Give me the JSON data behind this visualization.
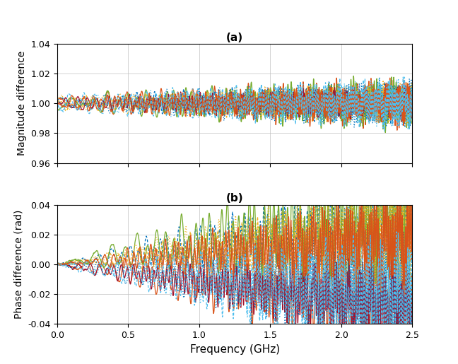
{
  "title_a": "(a)",
  "title_b": "(b)",
  "xlabel": "Frequency (GHz)",
  "ylabel_a": "Magnitude difference",
  "ylabel_b": "Phase difference (rad)",
  "xlim": [
    0,
    2.5
  ],
  "ylim_a": [
    0.96,
    1.04
  ],
  "ylim_b": [
    -0.04,
    0.04
  ],
  "xticks": [
    0,
    0.5,
    1.0,
    1.5,
    2.0,
    2.5
  ],
  "yticks_a": [
    0.96,
    0.98,
    1.0,
    1.02,
    1.04
  ],
  "yticks_b": [
    -0.04,
    -0.02,
    0.0,
    0.02,
    0.04
  ],
  "n_points": 2000,
  "n_lines": 10,
  "matlab_colors": [
    "#0072BD",
    "#D95319",
    "#EDB120",
    "#4DBEEE",
    "#77AC30",
    "#A2142F",
    "#EDB120",
    "#0072BD",
    "#D95319",
    "#4DBEEE"
  ],
  "line_styles": [
    "--",
    "-",
    "--",
    "--",
    "-",
    "-",
    ":",
    ":",
    "-",
    "--"
  ],
  "line_widths": [
    1.0,
    1.0,
    1.0,
    1.0,
    1.0,
    1.0,
    1.0,
    1.0,
    1.0,
    1.0
  ],
  "background_color": "#ffffff",
  "grid_color": "#c0c0c0",
  "seed": 7
}
